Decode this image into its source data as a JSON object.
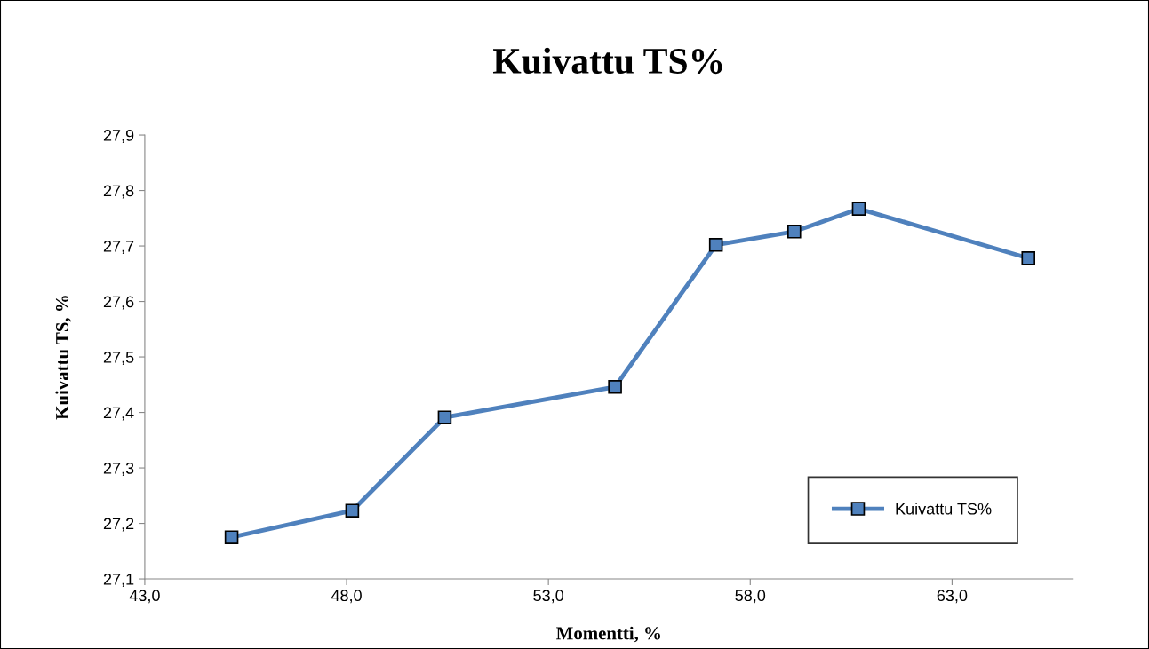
{
  "chart_data": {
    "type": "line",
    "title": "Kuivattu TS%",
    "xlabel": "Momentti, %",
    "ylabel": "Kuivattu TS, %",
    "x": [
      45.15,
      48.14,
      50.43,
      54.65,
      57.15,
      59.09,
      60.69,
      64.89
    ],
    "series": [
      {
        "name": "Kuivattu TS%",
        "color": "#4f81bd",
        "values": [
          27.175,
          27.223,
          27.391,
          27.446,
          27.702,
          27.726,
          27.767,
          27.678
        ]
      }
    ],
    "xlim": [
      43,
      66
    ],
    "xticks": [
      {
        "value": 43,
        "label": "43,0"
      },
      {
        "value": 48,
        "label": "48,0"
      },
      {
        "value": 53,
        "label": "53,0"
      },
      {
        "value": 58,
        "label": "58,0"
      },
      {
        "value": 63,
        "label": "63,0"
      }
    ],
    "ylim": [
      27.1,
      27.9
    ],
    "yticks": [
      {
        "value": 27.1,
        "label": "27,1"
      },
      {
        "value": 27.2,
        "label": "27,2"
      },
      {
        "value": 27.3,
        "label": "27,3"
      },
      {
        "value": 27.4,
        "label": "27,4"
      },
      {
        "value": 27.5,
        "label": "27,5"
      },
      {
        "value": 27.6,
        "label": "27,6"
      },
      {
        "value": 27.7,
        "label": "27,7"
      },
      {
        "value": 27.8,
        "label": "27,8"
      },
      {
        "value": 27.9,
        "label": "27,9"
      }
    ],
    "grid": false,
    "legend": "lower right",
    "marker": "square",
    "line_style": "solid"
  }
}
